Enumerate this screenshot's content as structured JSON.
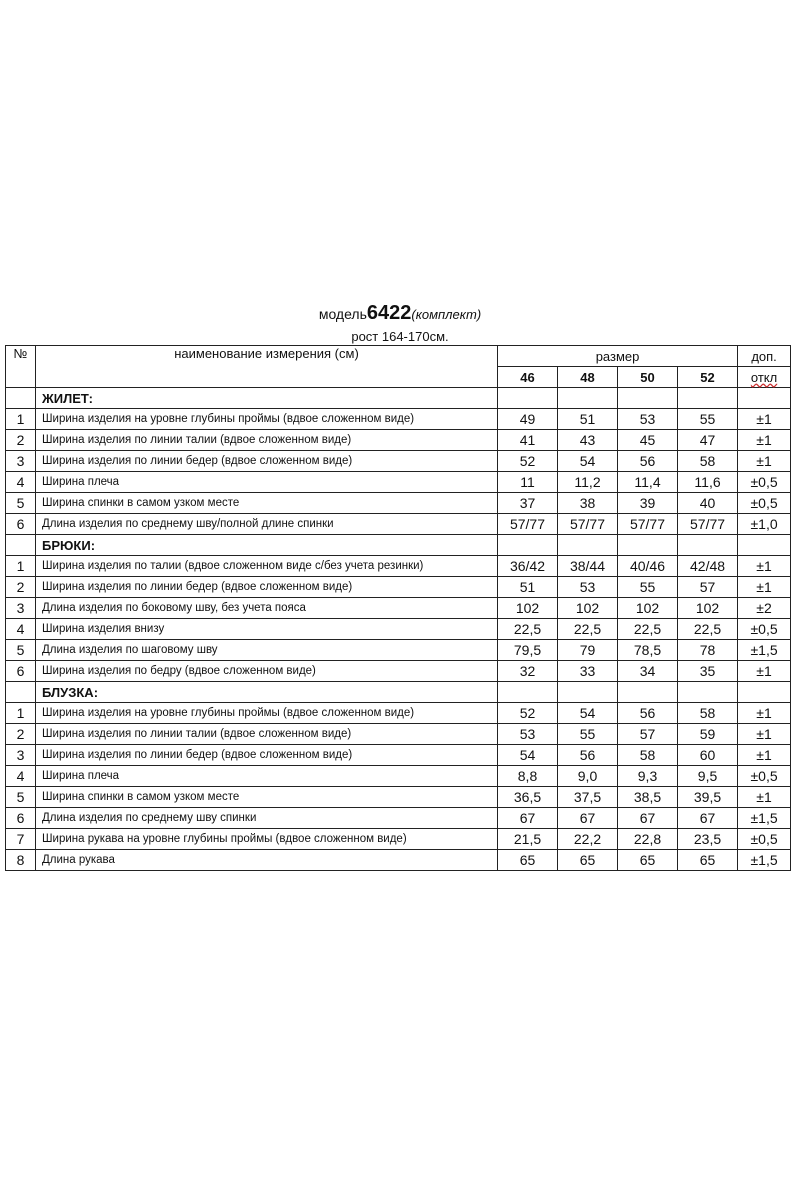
{
  "title": {
    "prefix": "модель",
    "model": "6422",
    "suffix": "(комплект)"
  },
  "height": "рост 164-170см.",
  "header": {
    "no": "№",
    "name": "наименование измерения (см)",
    "size": "размер",
    "tol_top": "доп.",
    "tol_bottom": "откл",
    "sizes": [
      "46",
      "48",
      "50",
      "52"
    ]
  },
  "sections": [
    {
      "title": "ЖИЛЕТ:",
      "rows": [
        {
          "no": "1",
          "name": "Ширина изделия на уровне глубины проймы (вдвое сложенном виде)",
          "values": [
            "49",
            "51",
            "53",
            "55"
          ],
          "tol": "±1"
        },
        {
          "no": "2",
          "name": "Ширина изделия по линии талии (вдвое сложенном виде)",
          "values": [
            "41",
            "43",
            "45",
            "47"
          ],
          "tol": "±1"
        },
        {
          "no": "3",
          "name": "Ширина изделия по линии бедер (вдвое сложенном виде)",
          "values": [
            "52",
            "54",
            "56",
            "58"
          ],
          "tol": "±1"
        },
        {
          "no": "4",
          "name": "Ширина плеча",
          "values": [
            "11",
            "11,2",
            "11,4",
            "11,6"
          ],
          "tol": "±0,5"
        },
        {
          "no": "5",
          "name": "Ширина спинки в самом узком месте",
          "values": [
            "37",
            "38",
            "39",
            "40"
          ],
          "tol": "±0,5"
        },
        {
          "no": "6",
          "name": "Длина изделия по среднему шву/полной длине спинки",
          "values": [
            "57/77",
            "57/77",
            "57/77",
            "57/77"
          ],
          "tol": "±1,0"
        }
      ]
    },
    {
      "title": "БРЮКИ:",
      "rows": [
        {
          "no": "1",
          "name": "Ширина изделия по талии (вдвое сложенном виде с/без учета резинки)",
          "values": [
            "36/42",
            "38/44",
            "40/46",
            "42/48"
          ],
          "tol": "±1"
        },
        {
          "no": "2",
          "name": "Ширина изделия по линии бедер (вдвое сложенном виде)",
          "values": [
            "51",
            "53",
            "55",
            "57"
          ],
          "tol": "±1"
        },
        {
          "no": "3",
          "name": "Длина изделия по боковому шву, без учета пояса",
          "values": [
            "102",
            "102",
            "102",
            "102"
          ],
          "tol": "±2"
        },
        {
          "no": "4",
          "name": "Ширина изделия внизу",
          "values": [
            "22,5",
            "22,5",
            "22,5",
            "22,5"
          ],
          "tol": "±0,5"
        },
        {
          "no": "5",
          "name": "Длина изделия по шаговому шву",
          "values": [
            "79,5",
            "79",
            "78,5",
            "78"
          ],
          "tol": "±1,5"
        },
        {
          "no": "6",
          "name": "Ширина изделия по бедру (вдвое сложенном виде)",
          "values": [
            "32",
            "33",
            "34",
            "35"
          ],
          "tol": "±1"
        }
      ]
    },
    {
      "title": "БЛУЗКА:",
      "rows": [
        {
          "no": "1",
          "name": "Ширина изделия на уровне глубины проймы (вдвое сложенном виде)",
          "values": [
            "52",
            "54",
            "56",
            "58"
          ],
          "tol": "±1"
        },
        {
          "no": "2",
          "name": "Ширина изделия по линии талии (вдвое сложенном виде)",
          "values": [
            "53",
            "55",
            "57",
            "59"
          ],
          "tol": "±1"
        },
        {
          "no": "3",
          "name": "Ширина изделия по линии бедер (вдвое сложенном виде)",
          "values": [
            "54",
            "56",
            "58",
            "60"
          ],
          "tol": "±1"
        },
        {
          "no": "4",
          "name": "Ширина плеча",
          "values": [
            "8,8",
            "9,0",
            "9,3",
            "9,5"
          ],
          "tol": "±0,5"
        },
        {
          "no": "5",
          "name": "Ширина спинки в самом узком месте",
          "values": [
            "36,5",
            "37,5",
            "38,5",
            "39,5"
          ],
          "tol": "±1"
        },
        {
          "no": "6",
          "name": "Длина изделия по среднему шву спинки",
          "values": [
            "67",
            "67",
            "67",
            "67"
          ],
          "tol": "±1,5"
        },
        {
          "no": "7",
          "name": "Ширина рукава на уровне глубины проймы (вдвое сложенном виде)",
          "values": [
            "21,5",
            "22,2",
            "22,8",
            "23,5"
          ],
          "tol": "±0,5"
        },
        {
          "no": "8",
          "name": "Длина рукава",
          "values": [
            "65",
            "65",
            "65",
            "65"
          ],
          "tol": "±1,5"
        }
      ]
    }
  ]
}
